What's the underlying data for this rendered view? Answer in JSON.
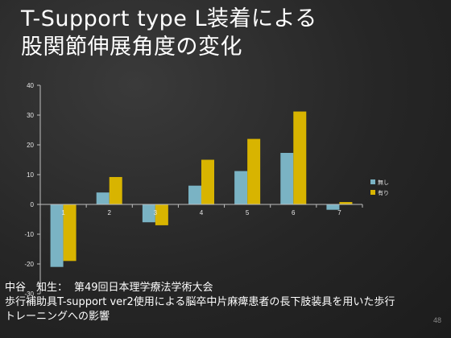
{
  "slide": {
    "title_line1": "T-Support type L装着による",
    "title_line2": "股関節伸展角度の変化",
    "page_number": "48"
  },
  "source": {
    "author": "中谷　知生：",
    "conference": "第49回日本理学療法学術大会",
    "paper_line1": "歩行補助具T-support ver2使用による脳卒中片麻痺患者の長下肢装具を用いた歩行",
    "paper_line2": "トレーニングへの影響"
  },
  "colors": {
    "series_none": "#7ab3c4",
    "series_with": "#d8b400",
    "axis": "#bfbfbf",
    "tick_text": "#e6e6e6"
  },
  "chart_data": {
    "type": "bar",
    "categories": [
      "1",
      "2",
      "3",
      "4",
      "5",
      "6",
      "7"
    ],
    "series": [
      {
        "name": "無し",
        "values": [
          -21,
          4,
          -6,
          6.3,
          11.2,
          17.3,
          -1.8
        ]
      },
      {
        "name": "有り",
        "values": [
          -19,
          9.2,
          -7,
          15,
          22,
          31.2,
          0.8
        ]
      }
    ],
    "ylim": [
      -30,
      40
    ],
    "yticks": [
      "40",
      "30",
      "20",
      "10",
      "0",
      "-10",
      "-20",
      "-30"
    ],
    "legend_position": "right",
    "grid": false
  }
}
